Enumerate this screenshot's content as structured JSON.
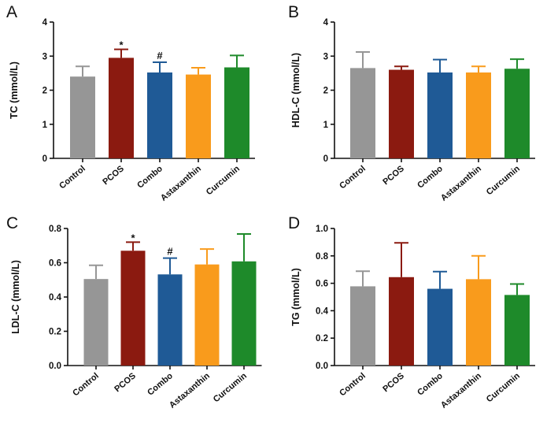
{
  "chart_data": [
    {
      "panel": "A",
      "type": "bar",
      "ylabel": "TC (mmol/L)",
      "categories": [
        "Control",
        "PCOS",
        "Combo",
        "Astaxanthin",
        "Curcumin"
      ],
      "values": [
        2.4,
        2.95,
        2.52,
        2.46,
        2.67
      ],
      "errors": [
        0.3,
        0.25,
        0.3,
        0.2,
        0.35
      ],
      "annotations": [
        "",
        "*",
        "#",
        "",
        ""
      ],
      "ylim": [
        0,
        4
      ],
      "yticks": [
        0,
        1,
        2,
        3,
        4
      ],
      "colors": [
        "#969696",
        "#8b1a10",
        "#1f5a96",
        "#f99b1c",
        "#1e8a2a"
      ]
    },
    {
      "panel": "B",
      "type": "bar",
      "ylabel": "HDL-C (mmol/L)",
      "categories": [
        "Control",
        "PCOS",
        "Combo",
        "Astaxanthin",
        "Curcumin"
      ],
      "values": [
        2.65,
        2.6,
        2.52,
        2.52,
        2.63
      ],
      "errors": [
        0.47,
        0.1,
        0.38,
        0.18,
        0.28
      ],
      "annotations": [
        "",
        "",
        "",
        "",
        ""
      ],
      "ylim": [
        0,
        4
      ],
      "yticks": [
        0,
        1,
        2,
        3,
        4
      ],
      "colors": [
        "#969696",
        "#8b1a10",
        "#1f5a96",
        "#f99b1c",
        "#1e8a2a"
      ]
    },
    {
      "panel": "C",
      "type": "bar",
      "ylabel": "LDL-C (mmol/L)",
      "categories": [
        "Control",
        "PCOS",
        "Combo",
        "Astaxanthin",
        "Curcumin"
      ],
      "values": [
        0.505,
        0.67,
        0.532,
        0.59,
        0.608
      ],
      "errors": [
        0.08,
        0.05,
        0.095,
        0.09,
        0.16
      ],
      "annotations": [
        "",
        "*",
        "#",
        "",
        ""
      ],
      "ylim": [
        0,
        0.8
      ],
      "yticks": [
        0.0,
        0.2,
        0.4,
        0.6,
        0.8
      ],
      "tick_labels": [
        "0.0",
        "0.2",
        "0.4",
        "0.6",
        "0.8"
      ],
      "colors": [
        "#969696",
        "#8b1a10",
        "#1f5a96",
        "#f99b1c",
        "#1e8a2a"
      ]
    },
    {
      "panel": "D",
      "type": "bar",
      "ylabel": "TG (mmol/L)",
      "categories": [
        "Control",
        "PCOS",
        "Combo",
        "Astaxanthin",
        "Curcumin"
      ],
      "values": [
        0.578,
        0.645,
        0.56,
        0.63,
        0.515
      ],
      "errors": [
        0.11,
        0.25,
        0.125,
        0.17,
        0.08
      ],
      "annotations": [
        "",
        "",
        "",
        "",
        ""
      ],
      "ylim": [
        0,
        1.0
      ],
      "yticks": [
        0.0,
        0.2,
        0.4,
        0.6,
        0.8,
        1.0
      ],
      "tick_labels": [
        "0.0",
        "0.2",
        "0.4",
        "0.6",
        "0.8",
        "1.0"
      ],
      "colors": [
        "#969696",
        "#8b1a10",
        "#1f5a96",
        "#f99b1c",
        "#1e8a2a"
      ]
    }
  ]
}
